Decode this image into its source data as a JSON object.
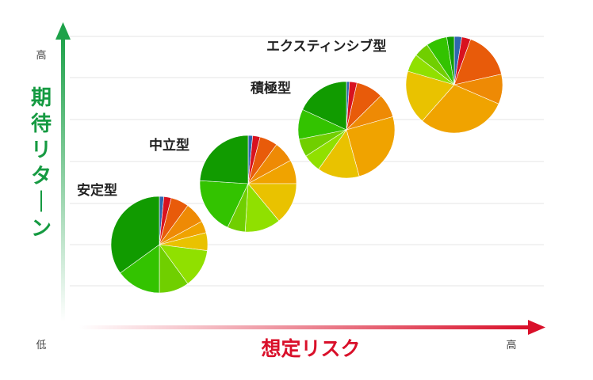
{
  "chart_data": {
    "type": "pie",
    "ylabel": "期待リターン",
    "xlabel": "想定リスク",
    "y_ticks": {
      "high": "高",
      "low": "低"
    },
    "x_ticks": {
      "high": "高"
    },
    "series_colors": [
      "#2f66b0",
      "#d8121f",
      "#e85b0a",
      "#ee8a05",
      "#f0a300",
      "#e9c200",
      "#90e000",
      "#70cf00",
      "#33c300",
      "#119b00"
    ],
    "pies": [
      {
        "label": "安定型",
        "values": [
          1.5,
          2.5,
          6,
          7,
          4,
          6,
          13,
          10,
          15,
          35
        ],
        "colors": [
          "#2f66b0",
          "#d8121f",
          "#e85b0a",
          "#ee8a05",
          "#f0a300",
          "#e9c200",
          "#90e000",
          "#70cf00",
          "#33c300",
          "#119b00"
        ]
      },
      {
        "label": "中立型",
        "values": [
          1.5,
          2.5,
          6,
          7,
          8,
          14,
          12,
          6,
          19,
          24
        ],
        "colors": [
          "#2f66b0",
          "#d8121f",
          "#e85b0a",
          "#ee8a05",
          "#f0a300",
          "#e9c200",
          "#90e000",
          "#70cf00",
          "#33c300",
          "#119b00"
        ]
      },
      {
        "label": "積極型",
        "values": [
          1,
          2.5,
          9,
          8,
          25,
          14,
          6,
          6,
          10,
          18
        ],
        "colors": [
          "#2f66b0",
          "#d8121f",
          "#e85b0a",
          "#ee8a05",
          "#f0a300",
          "#e9c200",
          "#90e000",
          "#70cf00",
          "#33c300",
          "#119b00"
        ]
      },
      {
        "label": "エクスティンシブ型",
        "values": [
          2.5,
          3,
          16,
          10,
          30,
          18,
          6,
          5,
          7,
          2.5
        ],
        "colors": [
          "#2f66b0",
          "#d8121f",
          "#e85b0a",
          "#ee8a05",
          "#f0a300",
          "#e9c200",
          "#90e000",
          "#70cf00",
          "#33c300",
          "#119b00"
        ]
      }
    ]
  }
}
